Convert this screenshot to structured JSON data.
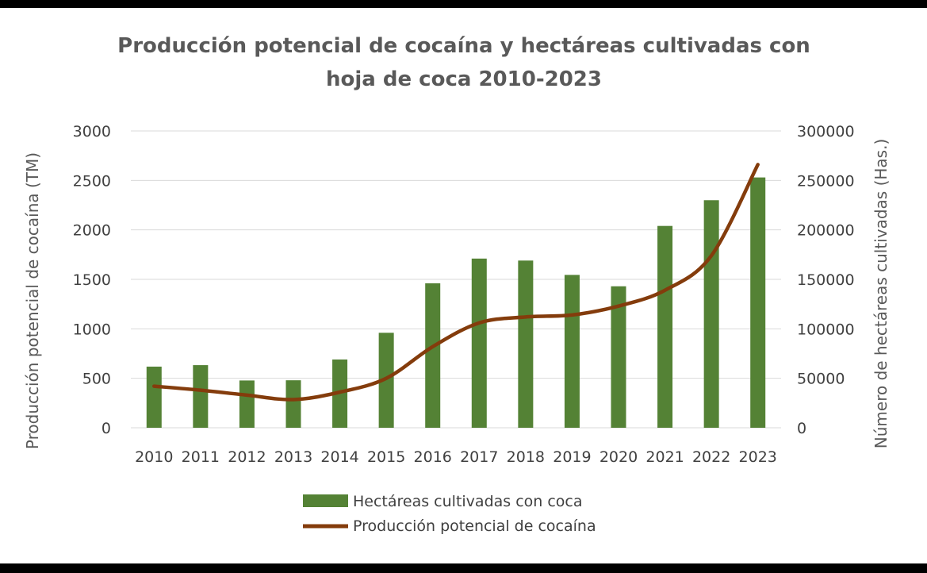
{
  "chart_data": {
    "type": "bar",
    "title_lines": [
      "Producción potencial de cocaína y hectáreas cultivadas con",
      "hoja de coca  2010-2023"
    ],
    "categories": [
      "2010",
      "2011",
      "2012",
      "2013",
      "2014",
      "2015",
      "2016",
      "2017",
      "2018",
      "2019",
      "2020",
      "2021",
      "2022",
      "2023"
    ],
    "series": [
      {
        "name": "Hectáreas cultivadas con coca",
        "type": "bar",
        "axis": "right",
        "color": "#548235",
        "values": [
          61800,
          63300,
          47800,
          48000,
          69000,
          96000,
          146000,
          171000,
          169000,
          154500,
          143000,
          204000,
          230000,
          253000
        ]
      },
      {
        "name": "Producción potencial de cocaína",
        "type": "line",
        "axis": "left",
        "color": "#843C0C",
        "values": [
          420,
          380,
          330,
          285,
          360,
          500,
          820,
          1060,
          1120,
          1140,
          1230,
          1390,
          1740,
          2660
        ]
      }
    ],
    "ylabel": "Producción potencial de cocaína (TM)",
    "y2label": "Número de hectáreas cultivadas (Has.)",
    "ylim": [
      0,
      3000
    ],
    "y2lim": [
      0,
      300000
    ],
    "yticks": [
      "0",
      "500",
      "1000",
      "1500",
      "2000",
      "2500",
      "3000"
    ],
    "y2ticks": [
      "0",
      "50000",
      "100000",
      "150000",
      "200000",
      "250000",
      "300000"
    ],
    "grid": true,
    "legend_position": "bottom"
  }
}
